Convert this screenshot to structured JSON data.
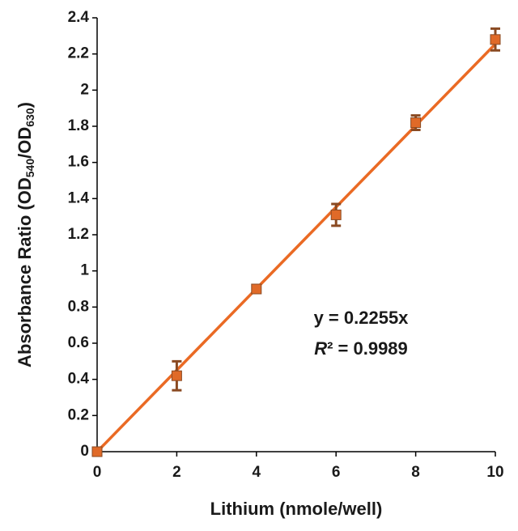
{
  "chart_data": {
    "type": "scatter",
    "xlabel": "Lithium (nmole/well)",
    "ylabel": [
      "Absorbance Ratio (OD",
      "540",
      "/OD",
      "630",
      ")"
    ],
    "x": [
      0,
      2,
      4,
      6,
      8,
      10
    ],
    "series": [
      {
        "values": [
          0,
          0.42,
          0.9,
          1.31,
          1.82,
          2.28
        ],
        "errors": [
          0.01,
          0.08,
          0.01,
          0.06,
          0.04,
          0.06
        ],
        "color": "#e06a28",
        "error_color": "#8a4a22"
      }
    ],
    "trendline": {
      "slope": 0.2255,
      "color": "#ea6a24"
    },
    "annotations": [
      "y = 0.2255x",
      [
        "R",
        "² = 0.9989"
      ]
    ],
    "xlim": [
      0,
      10
    ],
    "xticks": [
      0,
      2,
      4,
      6,
      8,
      10
    ],
    "ylim": [
      0,
      2.4
    ],
    "yticks": [
      0,
      0.2,
      0.4,
      0.6,
      0.8,
      1,
      1.2,
      1.4,
      1.6,
      1.8,
      2,
      2.2,
      2.4
    ]
  }
}
